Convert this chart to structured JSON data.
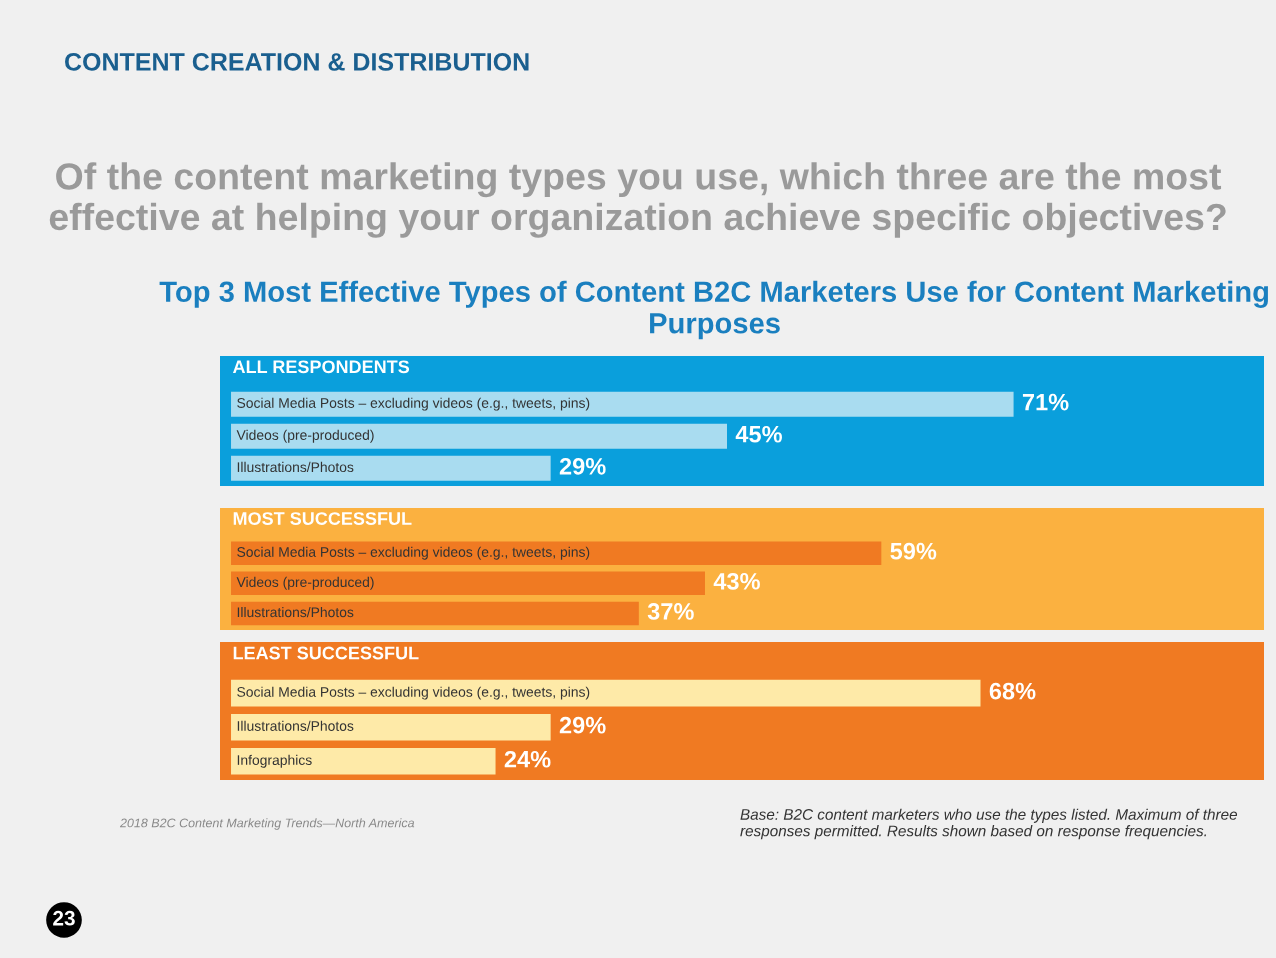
{
  "chart_data": [
    {
      "type": "bar",
      "orientation": "horizontal",
      "title": "ALL RESPONDENTS",
      "categories": [
        "Social Media Posts – excluding videos (e.g., tweets, pins)",
        "Videos (pre-produced)",
        "Illustrations/Photos"
      ],
      "values": [
        71,
        45,
        29
      ],
      "value_labels": [
        "71%",
        "45%",
        "29%"
      ],
      "color": "#a9dcf0",
      "annotations": [
        "CONTENT CREATION & DISTRIBUTION",
        "Of the content marketing types you use, which three are the most effective at helping your organization achieve specific objectives?",
        "Top 3 Most Effective Types of Content B2C Marketers Use for Content Marketing Purposes"
      ]
    },
    {
      "type": "bar",
      "orientation": "horizontal",
      "title": "MOST SUCCESSFUL",
      "categories": [
        "Social Media Posts – excluding videos (e.g., tweets, pins)",
        "Videos (pre-produced)",
        "Illustrations/Photos"
      ],
      "values": [
        59,
        43,
        37
      ],
      "value_labels": [
        "59%",
        "43%",
        "37%"
      ],
      "color": "#f07a22"
    },
    {
      "type": "bar",
      "orientation": "horizontal",
      "title": "LEAST SUCCESSFUL",
      "categories": [
        "Social Media Posts – excluding videos (e.g., tweets, pins)",
        "Illustrations/Photos",
        "Infographics"
      ],
      "values": [
        68,
        29,
        24
      ],
      "value_labels": [
        "68%",
        "29%",
        "24%"
      ],
      "color": "#feeaa8",
      "annotations": [
        "Base: B2C content marketers who use the types listed. Maximum of three responses permitted. Results shown based on response frequencies.",
        "2018 B2C Content Marketing Trends—North America",
        "23"
      ]
    }
  ]
}
